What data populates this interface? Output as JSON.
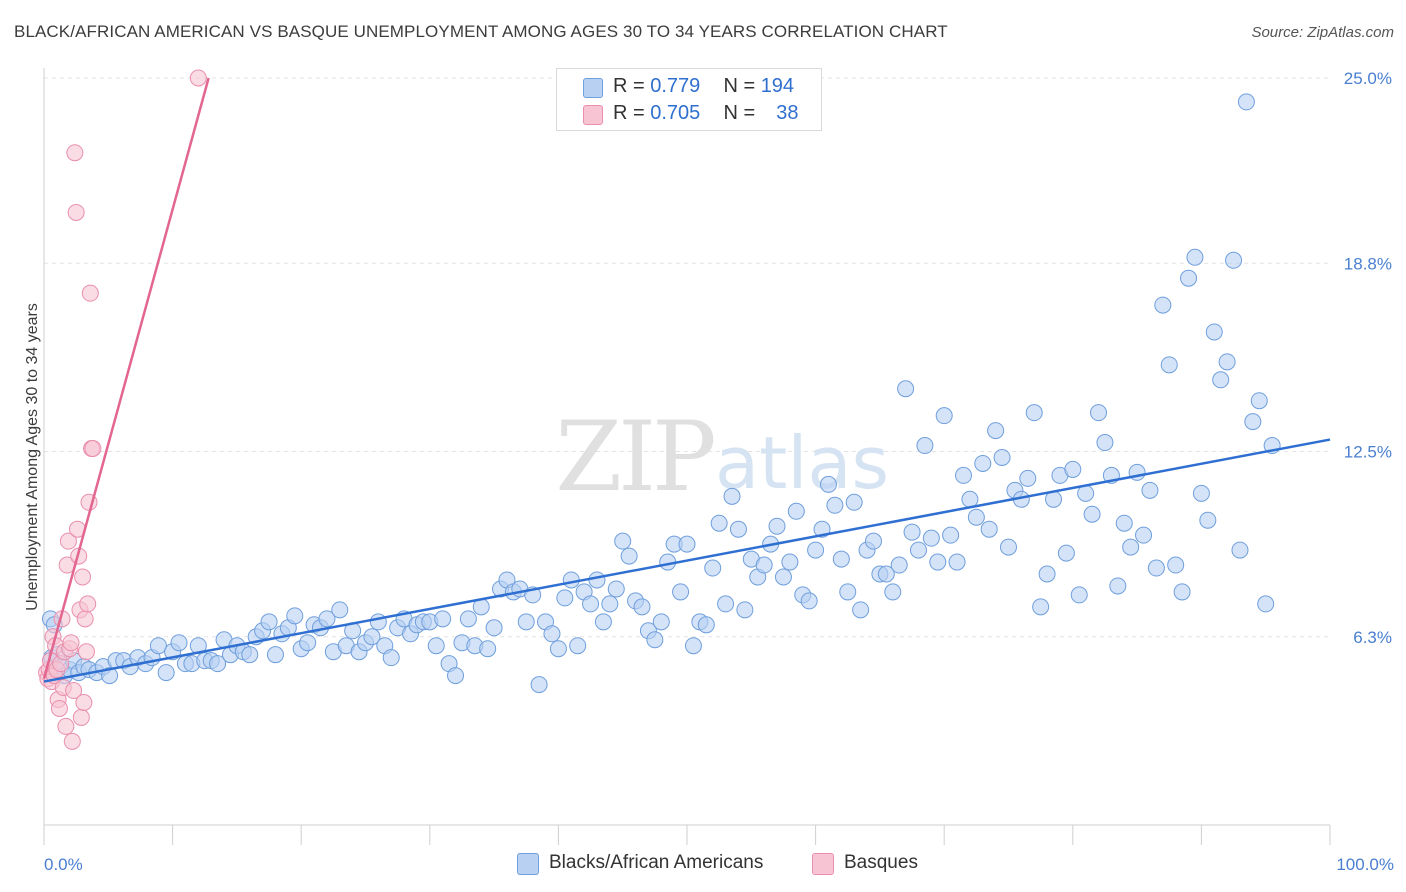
{
  "title": "BLACK/AFRICAN AMERICAN VS BASQUE UNEMPLOYMENT AMONG AGES 30 TO 34 YEARS CORRELATION CHART",
  "source": "Source: ZipAtlas.com",
  "watermark": {
    "zip": "ZIP",
    "atlas": "atlas"
  },
  "legend_top": {
    "r_label": "R =",
    "n_label": "N =",
    "rows": [
      {
        "r": "0.779",
        "n": "194"
      },
      {
        "r": "0.705",
        "n": "38"
      }
    ]
  },
  "colors": {
    "blue_fill": "#b8d1f3",
    "blue_stroke": "#6f9fdc",
    "blue_line": "#2e6fd1",
    "pink_fill": "#f7c4d4",
    "pink_stroke": "#e98fad",
    "pink_line": "#e2668f",
    "axis_label": "#4a7fd0",
    "grid": "#e3e3e3"
  },
  "chart_data": {
    "type": "scatter",
    "title": "BLACK/AFRICAN AMERICAN VS BASQUE UNEMPLOYMENT AMONG AGES 30 TO 34 YEARS CORRELATION CHART",
    "xlabel": "",
    "ylabel": "Unemployment Among Ages 30 to 34 years",
    "xlim": [
      0,
      100
    ],
    "ylim": [
      0,
      25.0
    ],
    "x_tick_labels": [
      "0.0%",
      "100.0%"
    ],
    "y_ticks": [
      6.3,
      12.5,
      18.8,
      25.0
    ],
    "y_tick_labels": [
      "6.3%",
      "12.5%",
      "18.8%",
      "25.0%"
    ],
    "grid": true,
    "legend_position": "bottom",
    "series": [
      {
        "name": "Blacks/African Americans",
        "r": 0.779,
        "n": 194,
        "trend": {
          "x": [
            0,
            100
          ],
          "y": [
            4.8,
            12.9
          ]
        },
        "points": [
          [
            0.5,
            6.9
          ],
          [
            0.6,
            5.6
          ],
          [
            0.8,
            6.7
          ],
          [
            1.0,
            5.7
          ],
          [
            1.3,
            5.3
          ],
          [
            1.6,
            5.0
          ],
          [
            2.0,
            5.2
          ],
          [
            2.3,
            5.5
          ],
          [
            2.7,
            5.1
          ],
          [
            3.1,
            5.3
          ],
          [
            3.5,
            5.2
          ],
          [
            4.1,
            5.1
          ],
          [
            4.6,
            5.3
          ],
          [
            5.1,
            5.0
          ],
          [
            5.6,
            5.5
          ],
          [
            6.2,
            5.5
          ],
          [
            6.7,
            5.3
          ],
          [
            7.3,
            5.6
          ],
          [
            7.9,
            5.4
          ],
          [
            8.4,
            5.6
          ],
          [
            8.9,
            6.0
          ],
          [
            9.5,
            5.1
          ],
          [
            10.0,
            5.8
          ],
          [
            10.5,
            6.1
          ],
          [
            11.0,
            5.4
          ],
          [
            11.5,
            5.4
          ],
          [
            12.0,
            6.0
          ],
          [
            12.5,
            5.5
          ],
          [
            13.0,
            5.5
          ],
          [
            13.5,
            5.4
          ],
          [
            14.0,
            6.2
          ],
          [
            14.5,
            5.7
          ],
          [
            15.0,
            6.0
          ],
          [
            15.5,
            5.8
          ],
          [
            16.0,
            5.7
          ],
          [
            16.5,
            6.3
          ],
          [
            17.0,
            6.5
          ],
          [
            17.5,
            6.8
          ],
          [
            18.0,
            5.7
          ],
          [
            18.5,
            6.4
          ],
          [
            19.0,
            6.6
          ],
          [
            19.5,
            7.0
          ],
          [
            20.0,
            5.9
          ],
          [
            20.5,
            6.1
          ],
          [
            21.0,
            6.7
          ],
          [
            21.5,
            6.6
          ],
          [
            22.0,
            6.9
          ],
          [
            22.5,
            5.8
          ],
          [
            23.0,
            7.2
          ],
          [
            23.5,
            6.0
          ],
          [
            24.0,
            6.5
          ],
          [
            24.5,
            5.8
          ],
          [
            25.0,
            6.1
          ],
          [
            25.5,
            6.3
          ],
          [
            26.0,
            6.8
          ],
          [
            26.5,
            6.0
          ],
          [
            27.0,
            5.6
          ],
          [
            27.5,
            6.6
          ],
          [
            28.0,
            6.9
          ],
          [
            28.5,
            6.4
          ],
          [
            29.0,
            6.7
          ],
          [
            29.5,
            6.8
          ],
          [
            30.0,
            6.8
          ],
          [
            30.5,
            6.0
          ],
          [
            31.0,
            6.9
          ],
          [
            31.5,
            5.4
          ],
          [
            32.0,
            5.0
          ],
          [
            32.5,
            6.1
          ],
          [
            33.0,
            6.9
          ],
          [
            33.5,
            6.0
          ],
          [
            34.0,
            7.3
          ],
          [
            34.5,
            5.9
          ],
          [
            35.0,
            6.6
          ],
          [
            35.5,
            7.9
          ],
          [
            36.0,
            8.2
          ],
          [
            36.5,
            7.8
          ],
          [
            37.0,
            7.9
          ],
          [
            37.5,
            6.8
          ],
          [
            38.0,
            7.7
          ],
          [
            38.5,
            4.7
          ],
          [
            39.0,
            6.8
          ],
          [
            39.5,
            6.4
          ],
          [
            40.0,
            5.9
          ],
          [
            40.5,
            7.6
          ],
          [
            41.0,
            8.2
          ],
          [
            41.5,
            6.0
          ],
          [
            42.0,
            7.8
          ],
          [
            42.5,
            7.4
          ],
          [
            43.0,
            8.2
          ],
          [
            43.5,
            6.8
          ],
          [
            44.0,
            7.4
          ],
          [
            44.5,
            7.9
          ],
          [
            45.0,
            9.5
          ],
          [
            45.5,
            9.0
          ],
          [
            46.0,
            7.5
          ],
          [
            46.5,
            7.3
          ],
          [
            47.0,
            6.5
          ],
          [
            47.5,
            6.2
          ],
          [
            48.0,
            6.8
          ],
          [
            48.5,
            8.8
          ],
          [
            49.0,
            9.4
          ],
          [
            49.5,
            7.8
          ],
          [
            50.0,
            9.4
          ],
          [
            50.5,
            6.0
          ],
          [
            51.0,
            6.8
          ],
          [
            51.5,
            6.7
          ],
          [
            52.0,
            8.6
          ],
          [
            52.5,
            10.1
          ],
          [
            53.0,
            7.4
          ],
          [
            53.5,
            11.0
          ],
          [
            54.0,
            9.9
          ],
          [
            54.5,
            7.2
          ],
          [
            55.0,
            8.9
          ],
          [
            55.5,
            8.3
          ],
          [
            56.0,
            8.7
          ],
          [
            56.5,
            9.4
          ],
          [
            57.0,
            10.0
          ],
          [
            57.5,
            8.3
          ],
          [
            58.0,
            8.8
          ],
          [
            58.5,
            10.5
          ],
          [
            59.0,
            7.7
          ],
          [
            59.5,
            7.5
          ],
          [
            60.0,
            9.2
          ],
          [
            60.5,
            9.9
          ],
          [
            61.0,
            11.4
          ],
          [
            61.5,
            10.7
          ],
          [
            62.0,
            8.9
          ],
          [
            62.5,
            7.8
          ],
          [
            63.0,
            10.8
          ],
          [
            63.5,
            7.2
          ],
          [
            64.0,
            9.2
          ],
          [
            64.5,
            9.5
          ],
          [
            65.0,
            8.4
          ],
          [
            65.5,
            8.4
          ],
          [
            66.0,
            7.8
          ],
          [
            66.5,
            8.7
          ],
          [
            67.0,
            14.6
          ],
          [
            67.5,
            9.8
          ],
          [
            68.0,
            9.2
          ],
          [
            68.5,
            12.7
          ],
          [
            69.0,
            9.6
          ],
          [
            69.5,
            8.8
          ],
          [
            70.0,
            13.7
          ],
          [
            70.5,
            9.7
          ],
          [
            71.0,
            8.8
          ],
          [
            71.5,
            11.7
          ],
          [
            72.0,
            10.9
          ],
          [
            72.5,
            10.3
          ],
          [
            73.0,
            12.1
          ],
          [
            73.5,
            9.9
          ],
          [
            74.0,
            13.2
          ],
          [
            74.5,
            12.3
          ],
          [
            75.0,
            9.3
          ],
          [
            75.5,
            11.2
          ],
          [
            76.0,
            10.9
          ],
          [
            76.5,
            11.6
          ],
          [
            77.0,
            13.8
          ],
          [
            77.5,
            7.3
          ],
          [
            78.0,
            8.4
          ],
          [
            78.5,
            10.9
          ],
          [
            79.0,
            11.7
          ],
          [
            79.5,
            9.1
          ],
          [
            80.0,
            11.9
          ],
          [
            80.5,
            7.7
          ],
          [
            81.0,
            11.1
          ],
          [
            81.5,
            10.4
          ],
          [
            82.0,
            13.8
          ],
          [
            82.5,
            12.8
          ],
          [
            83.0,
            11.7
          ],
          [
            83.5,
            8.0
          ],
          [
            84.0,
            10.1
          ],
          [
            84.5,
            9.3
          ],
          [
            85.0,
            11.8
          ],
          [
            85.5,
            9.7
          ],
          [
            86.0,
            11.2
          ],
          [
            86.5,
            8.6
          ],
          [
            87.0,
            17.4
          ],
          [
            87.5,
            15.4
          ],
          [
            88.0,
            8.7
          ],
          [
            88.5,
            7.8
          ],
          [
            89.0,
            18.3
          ],
          [
            89.5,
            19.0
          ],
          [
            90.0,
            11.1
          ],
          [
            90.5,
            10.2
          ],
          [
            91.0,
            16.5
          ],
          [
            91.5,
            14.9
          ],
          [
            92.0,
            15.5
          ],
          [
            92.5,
            18.9
          ],
          [
            93.0,
            9.2
          ],
          [
            93.5,
            24.2
          ],
          [
            94.0,
            13.5
          ],
          [
            94.5,
            14.2
          ],
          [
            95.0,
            7.4
          ],
          [
            95.5,
            12.7
          ]
        ]
      },
      {
        "name": "Basques",
        "r": 0.705,
        "n": 38,
        "trend": {
          "x": [
            0,
            12.8
          ],
          "y": [
            4.9,
            25.0
          ]
        },
        "points": [
          [
            0.2,
            5.1
          ],
          [
            0.3,
            4.9
          ],
          [
            0.4,
            5.2
          ],
          [
            0.5,
            5.5
          ],
          [
            0.6,
            4.8
          ],
          [
            0.7,
            6.3
          ],
          [
            0.8,
            5.0
          ],
          [
            0.9,
            6.0
          ],
          [
            1.0,
            5.2
          ],
          [
            1.1,
            4.2
          ],
          [
            1.2,
            3.9
          ],
          [
            1.3,
            5.4
          ],
          [
            1.4,
            6.9
          ],
          [
            1.5,
            4.6
          ],
          [
            1.6,
            5.8
          ],
          [
            1.7,
            3.3
          ],
          [
            1.8,
            8.7
          ],
          [
            1.9,
            9.5
          ],
          [
            2.0,
            5.9
          ],
          [
            2.1,
            6.1
          ],
          [
            2.2,
            2.8
          ],
          [
            2.3,
            4.5
          ],
          [
            2.4,
            22.5
          ],
          [
            2.5,
            20.5
          ],
          [
            2.6,
            9.9
          ],
          [
            2.7,
            9.0
          ],
          [
            2.8,
            7.2
          ],
          [
            2.9,
            3.6
          ],
          [
            3.0,
            8.3
          ],
          [
            3.1,
            4.1
          ],
          [
            3.2,
            6.9
          ],
          [
            3.3,
            5.8
          ],
          [
            3.4,
            7.4
          ],
          [
            3.5,
            10.8
          ],
          [
            3.6,
            17.8
          ],
          [
            3.7,
            12.6
          ],
          [
            3.8,
            12.6
          ],
          [
            12.0,
            25.0
          ]
        ]
      }
    ]
  },
  "legend_bottom": [
    "Blacks/African Americans",
    "Basques"
  ]
}
